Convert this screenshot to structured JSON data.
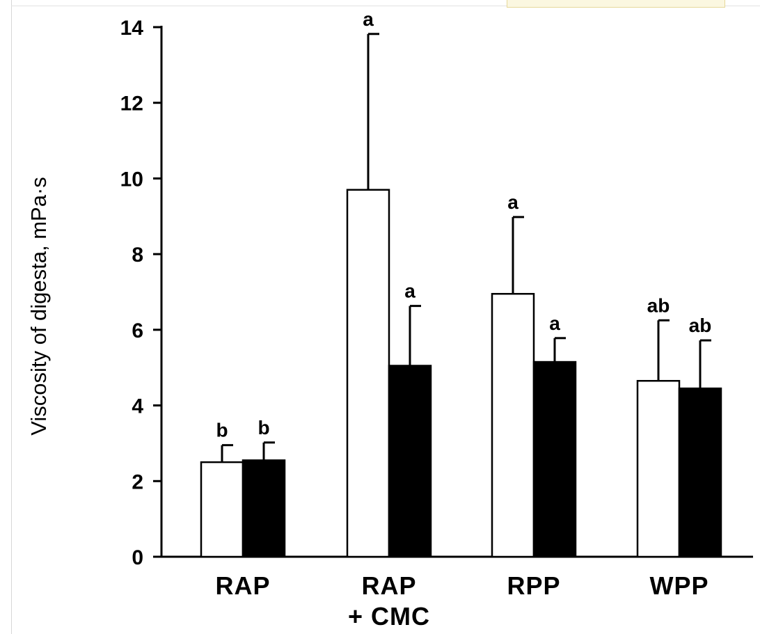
{
  "chart_data": {
    "type": "bar",
    "title": "",
    "xlabel": "",
    "ylabel": "Viscosity of digesta, mPa·s",
    "ylim": [
      0,
      14
    ],
    "yticks": [
      0,
      2,
      4,
      6,
      8,
      10,
      12,
      14
    ],
    "grid": false,
    "categories": [
      {
        "lines": [
          "RAP"
        ]
      },
      {
        "lines": [
          "RAP",
          "+ CMC"
        ]
      },
      {
        "lines": [
          "RPP"
        ]
      },
      {
        "lines": [
          "WPP"
        ]
      }
    ],
    "series": [
      {
        "fill": "#ffffff",
        "values": [
          2.5,
          9.7,
          6.95,
          4.65
        ],
        "error_upper": [
          2.95,
          13.82,
          8.98,
          6.25
        ],
        "labels": [
          "b",
          "a",
          "a",
          "ab"
        ]
      },
      {
        "fill": "#000000",
        "values": [
          2.55,
          5.05,
          5.15,
          4.45
        ],
        "error_upper": [
          3.02,
          6.63,
          5.78,
          5.72
        ],
        "labels": [
          "b",
          "a",
          "a",
          "ab"
        ]
      }
    ]
  }
}
